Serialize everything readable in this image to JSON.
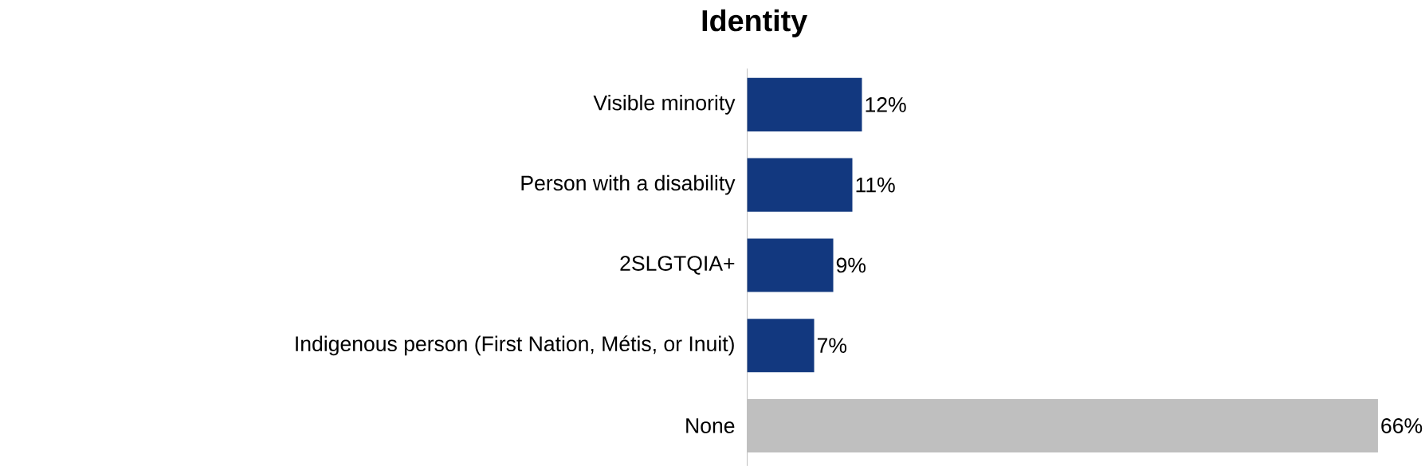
{
  "chart_data": {
    "type": "bar",
    "orientation": "horizontal",
    "title": "Identity",
    "categories": [
      "Visible minority",
      "Person with a disability",
      "2SLGTQIA+",
      "Indigenous person (First Nation, Métis, or Inuit)",
      "None"
    ],
    "values": [
      12,
      11,
      9,
      7,
      66
    ],
    "colors": [
      "#12387f",
      "#12387f",
      "#12387f",
      "#12387f",
      "#bfbfbf"
    ],
    "value_labels": [
      "12%",
      "11%",
      "9%",
      "7%",
      "66%"
    ]
  }
}
